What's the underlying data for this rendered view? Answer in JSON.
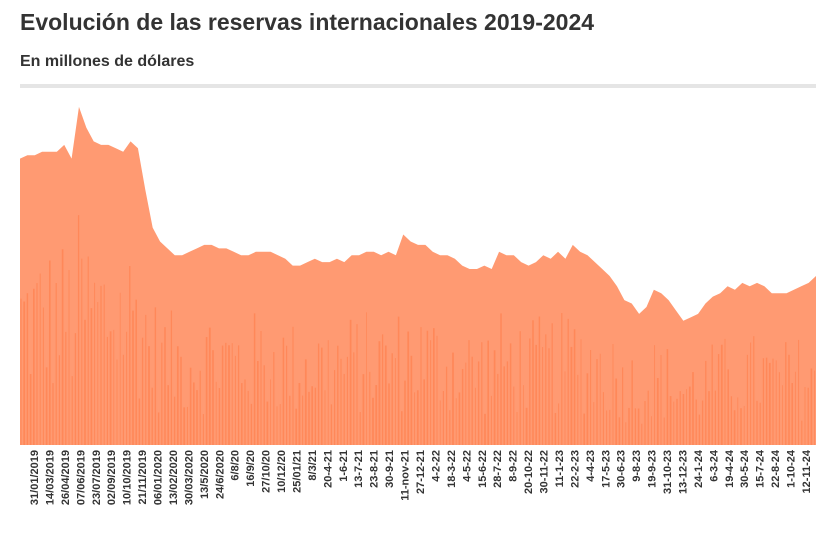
{
  "title": "Evolución de las reservas internacionales 2019-2024",
  "subtitle": "En millones de dólares",
  "colors": {
    "bars": "#ff9a72",
    "bars_dark": "#ff7a45",
    "text": "#333333",
    "rule": "#e5e5e5"
  },
  "chart_data": {
    "type": "area",
    "title": "Evolución de las reservas internacionales 2019-2024",
    "subtitle": "En millones de dólares",
    "xlabel": "",
    "ylabel": "",
    "ylim": [
      0,
      100
    ],
    "grid": false,
    "legend": "none",
    "x_tick_labels": [
      "31/01/2019",
      "14/03/2019",
      "26/04/2019",
      "07/06/2019",
      "23/07/2019",
      "02/09/2019",
      "10/10/2019",
      "21/11/2019",
      "06/01/2020",
      "13/02/2020",
      "30/03/2020",
      "13/5/2020",
      "24/6/2020",
      "6/8/20",
      "16/9/20",
      "27/10/20",
      "10/12/20",
      "25/01/21",
      "8/3/21",
      "20-4-21",
      "1-6-21",
      "13-7-21",
      "23-8-21",
      "30-9-21",
      "11-nov-21",
      "27-12-21",
      "4-2-22",
      "18-3-22",
      "4-5-22",
      "15-6-22",
      "28-7-22",
      "8-9-22",
      "20-10-22",
      "30-11-22",
      "11-1-23",
      "22-2-23",
      "4-4-23",
      "17-5-23",
      "30-6-23",
      "9-8-23",
      "19-9-23",
      "31-10-23",
      "13-12-23",
      "24-1-24",
      "6-3-24",
      "19-4-24",
      "30-5-24",
      "15-7-24",
      "22-8-24",
      "1-10-24",
      "12-11-24"
    ],
    "series": [
      {
        "values": [
          83,
          84,
          84,
          85,
          85,
          85,
          87,
          83,
          98,
          92,
          88,
          87,
          87,
          86,
          85,
          88,
          86,
          74,
          63,
          59,
          57,
          55,
          55,
          56,
          57,
          58,
          58,
          57,
          57,
          56,
          55,
          55,
          56,
          56,
          56,
          55,
          54,
          52,
          52,
          53,
          54,
          53,
          53,
          54,
          53,
          55,
          55,
          56,
          56,
          55,
          56,
          55,
          61,
          59,
          58,
          58,
          56,
          55,
          55,
          54,
          52,
          51,
          51,
          52,
          51,
          56,
          55,
          55,
          53,
          52,
          53,
          55,
          54,
          56,
          54,
          58,
          56,
          55,
          53,
          51,
          49,
          46,
          42,
          41,
          38,
          40,
          45,
          44,
          42,
          39,
          36,
          37,
          38,
          41,
          43,
          44,
          46,
          45,
          47,
          46,
          47,
          46,
          44,
          44,
          44,
          45,
          46,
          47,
          49
        ]
      }
    ]
  }
}
